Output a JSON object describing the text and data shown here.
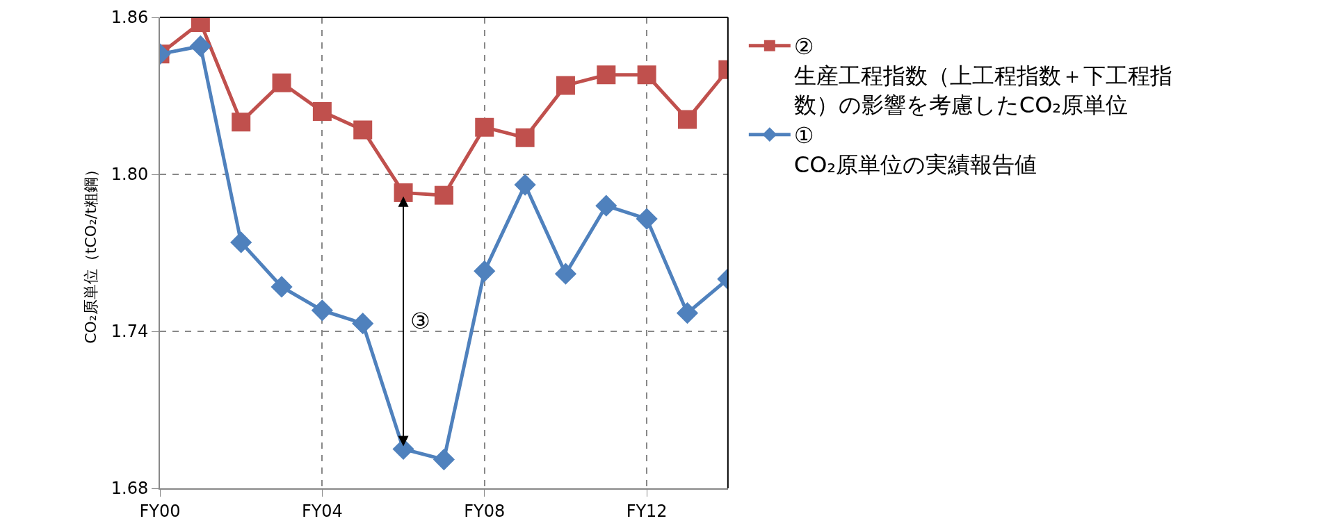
{
  "chart_data": {
    "type": "line",
    "ylabel": "CO₂原単位（tCO₂/t粗鋼）",
    "categories": [
      "FY00",
      null,
      null,
      null,
      "FY04",
      null,
      null,
      null,
      "FY08",
      null,
      null,
      null,
      "FY12",
      null,
      null
    ],
    "ylim": [
      1.68,
      1.86
    ],
    "yticks": [
      {
        "value": 1.68,
        "label": "1.68"
      },
      {
        "value": 1.74,
        "label": "1.74"
      },
      {
        "value": 1.8,
        "label": "1.80"
      },
      {
        "value": 1.86,
        "label": "1.86"
      }
    ],
    "grid": true,
    "legend": "right",
    "line_style": "solid",
    "series": [
      {
        "name": "② 生産工程指数（上工程指数＋下工程指数）の影響を考慮したCO₂原単位",
        "color": "#c0504d",
        "marker": "square",
        "values": [
          1.846,
          1.858,
          1.82,
          1.835,
          1.824,
          1.817,
          1.793,
          1.792,
          1.818,
          1.814,
          1.834,
          1.838,
          1.838,
          1.821,
          1.84
        ]
      },
      {
        "name": "① CO₂原単位の実績報告値",
        "color": "#4f81bd",
        "marker": "diamond",
        "values": [
          1.846,
          1.849,
          1.774,
          1.757,
          1.748,
          1.743,
          1.695,
          1.691,
          1.763,
          1.796,
          1.762,
          1.788,
          1.783,
          1.747,
          1.76
        ]
      }
    ],
    "annotations": [
      "③"
    ]
  }
}
